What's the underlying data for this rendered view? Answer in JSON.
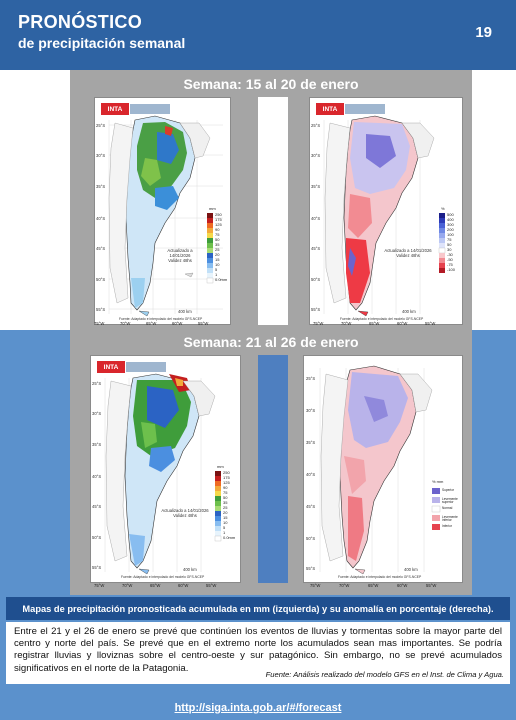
{
  "header": {
    "title": "PRONÓSTICO",
    "subtitle": "de precipitación semanal",
    "page_number": "19"
  },
  "week1": {
    "label": "Semana: 15 al 20 de enero",
    "left_map": {
      "logo": "INTA",
      "legend_unit": "mm",
      "legend_values": [
        "250",
        "175",
        "125",
        "90",
        "75",
        "50",
        "35",
        "25",
        "20",
        "15",
        "10",
        "5",
        "1",
        "0.0mm"
      ],
      "update_text": "Actualizado a 14/01/2026",
      "valid_text": "Validez 48hs",
      "scale": "400 km",
      "footnote": "Fuente: Adaptado e interpolado del modelo GFS-NCEP"
    },
    "right_map": {
      "logo": "INTA",
      "legend_unit": "%",
      "legend_values": [
        "500",
        "400",
        "300",
        "200",
        "100",
        "75",
        "50",
        "30",
        "-30",
        "-50",
        "-75",
        "-100"
      ],
      "update_text": "Actualizado a 14/01/2026",
      "valid_text": "Validez 48hs",
      "scale": "400 km",
      "footnote": "Fuente: Adaptado e interpolado del modelo GFS-NCEP"
    }
  },
  "week2": {
    "label": "Semana: 21 al 26 de enero",
    "left_map": {
      "logo": "INTA",
      "legend_unit": "mm",
      "legend_values": [
        "250",
        "175",
        "125",
        "90",
        "75",
        "50",
        "35",
        "25",
        "20",
        "15",
        "10",
        "5",
        "1",
        "0.0mm"
      ],
      "update_text": "Actualizado a 14/01/2026",
      "valid_text": "Validez 48hs",
      "scale": "400 km",
      "footnote": "Fuente: Adaptado e interpolado del modelo GFS-NCEP"
    },
    "right_map": {
      "logo": "INTA",
      "legend_unit": "% mm",
      "legend_values": [
        "Superior",
        "Levemente superior",
        "Normal",
        "Levemente inferior",
        "Inferior"
      ],
      "scale": "400 km",
      "footnote": "Fuente: Adaptado e interpolado del modelo GFS-NCEP"
    }
  },
  "lat_ticks": [
    "25°S",
    "30°S",
    "35°S",
    "40°S",
    "45°S",
    "50°S",
    "55°S"
  ],
  "lon_ticks": [
    "75°W",
    "70°W",
    "65°W",
    "60°W",
    "55°W"
  ],
  "caption": "Mapas de precipitación pronosticada acumulada en mm (izquierda) y su anomalía en porcentaje (derecha).",
  "body_text": "Entre el 21 y el 26 de enero se prevé que continúen los eventos de lluvias y tormentas sobre la mayor parte del centro y norte del país. Se prevé que en el extremo norte los acumulados sean mas importantes. Se podría registrar lluvias y lloviznas sobre el centro-oeste y sur patagónico. Sin embargo, no se prevé acumulados significativos en el norte de la Patagonia.",
  "source": "Fuente: Análisis realizado del modelo GFS en el Inst. de Clima y Agua.",
  "footer_url": "http://siga.inta.gob.ar/#/forecast",
  "colors": {
    "header": "#2e63a3",
    "band": "#5b91cc",
    "panel": "#a5a5a5",
    "caption": "#1f4f8f"
  }
}
